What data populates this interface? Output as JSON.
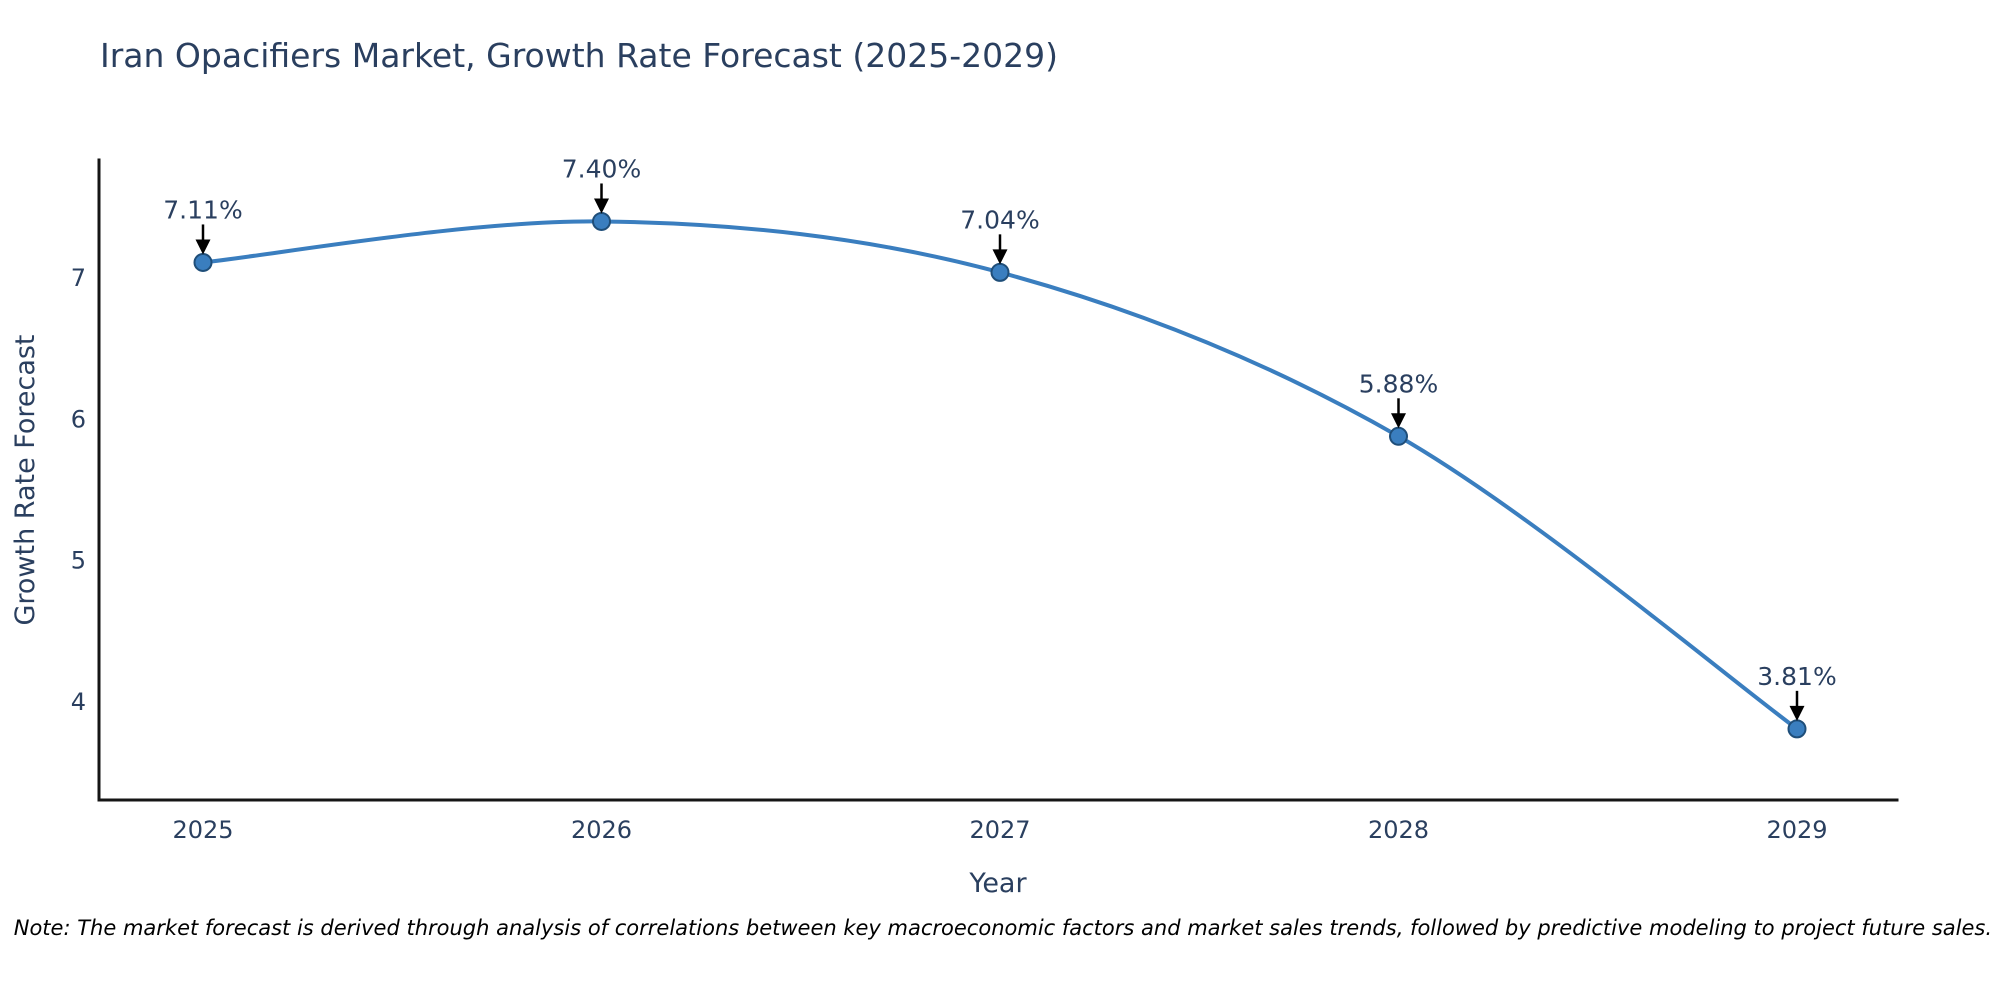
{
  "note": "Note: The market forecast is derived through analysis of correlations between key macroeconomic factors and market sales trends, followed by predictive modeling to project future sales.",
  "chart_data": {
    "type": "line",
    "title": "Iran Opacifiers Market, Growth Rate Forecast (2025-2029)",
    "xlabel": "Year",
    "ylabel": "Growth Rate Forecast",
    "categories": [
      "2025",
      "2026",
      "2027",
      "2028",
      "2029"
    ],
    "values": [
      7.11,
      7.4,
      7.04,
      5.88,
      3.81
    ],
    "point_labels": [
      "7.11%",
      "7.40%",
      "7.04%",
      "5.88%",
      "3.81%"
    ],
    "yticks": [
      "4",
      "5",
      "6",
      "7"
    ],
    "ylim": [
      3.3,
      7.84
    ],
    "line_shape": "spline",
    "grid": "off",
    "legend": "none",
    "annotation_style": "label-with-down-arrow",
    "colors": {
      "line": "#3a7ebf",
      "marker": "#3a7ebf",
      "marker_outline": "#1f4e79",
      "axis": "#151515",
      "tick_text": "#2a3f5f",
      "title_text": "#2a3f5f",
      "annotation_text": "#2a3f5f",
      "arrow": "#000000",
      "note_text": "#000000",
      "background": "#ffffff"
    }
  }
}
